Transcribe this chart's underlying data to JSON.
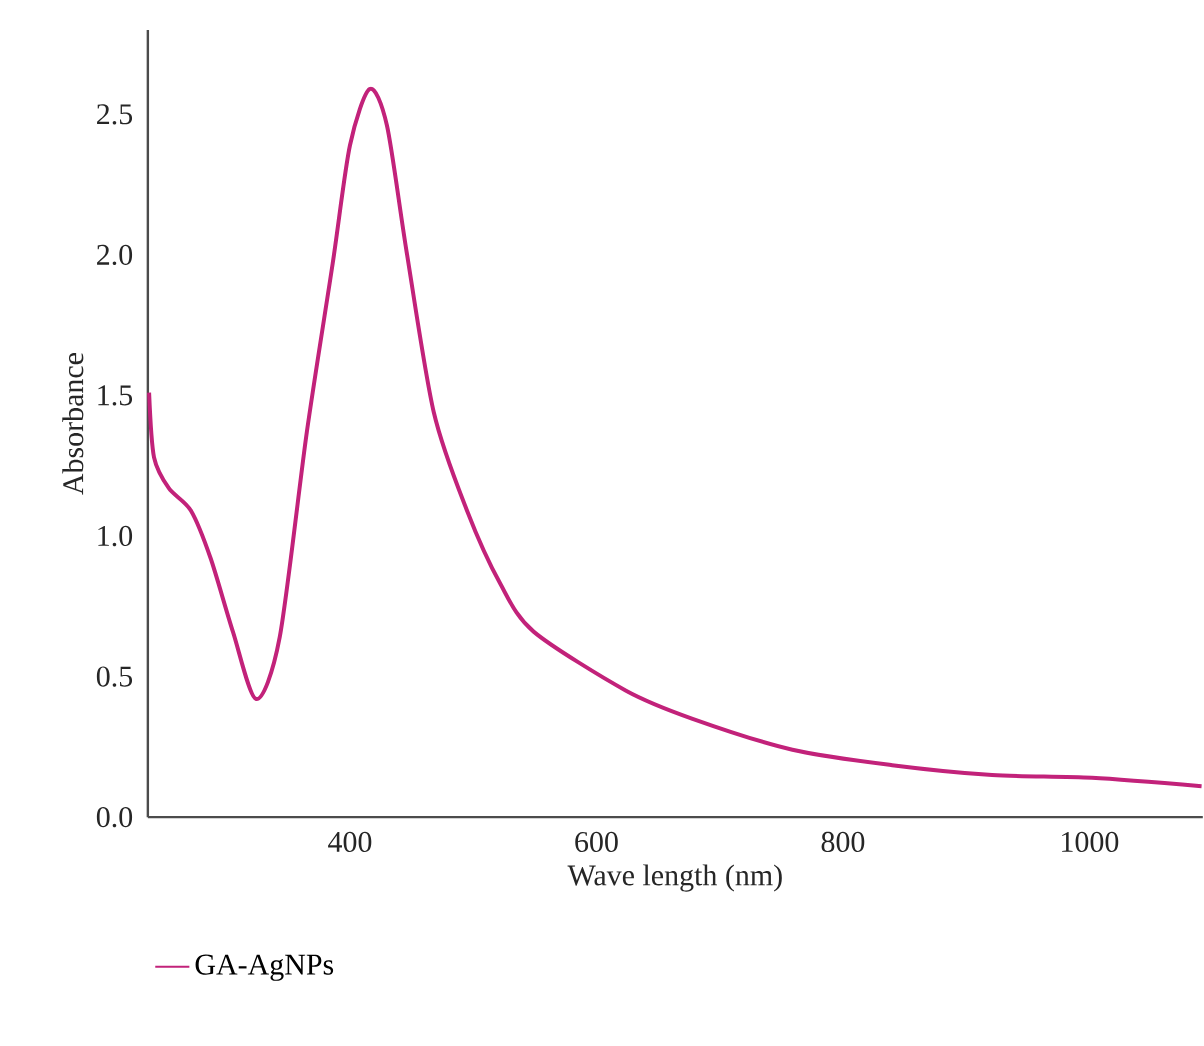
{
  "chart_data": {
    "type": "line",
    "xlabel": "Wave length (nm)",
    "ylabel": "Absorbance",
    "xlim": [
      236,
      1092
    ],
    "xticks": [
      400,
      600,
      800,
      1000
    ],
    "ylim": [
      0,
      2.8
    ],
    "yticks": [
      {
        "value": 0,
        "label": "0.0"
      },
      {
        "value": 0.5,
        "label": "0.5"
      },
      {
        "value": 1,
        "label": "1.0"
      },
      {
        "value": 1.5,
        "label": "1.5"
      },
      {
        "value": 2,
        "label": "2.0"
      },
      {
        "value": 2.5,
        "label": "2.5"
      }
    ],
    "grid": false,
    "legend": "bottom left",
    "marker": "none",
    "line_style": "solid",
    "series": [
      {
        "name": "GA-AgNPs",
        "color": "#c2227a",
        "x": [
          237,
          241,
          253,
          271,
          287,
          305,
          324,
          343,
          365,
          386,
          400,
          416,
          430,
          446,
          468,
          495,
          522,
          549,
          624,
          678,
          759,
          840,
          921,
          1002,
          1091
        ],
        "values": [
          1.51,
          1.28,
          1.17,
          1.09,
          0.92,
          0.66,
          0.42,
          0.64,
          1.37,
          1.97,
          2.39,
          2.59,
          2.46,
          2.01,
          1.44,
          1.09,
          0.83,
          0.66,
          0.45,
          0.35,
          0.24,
          0.185,
          0.15,
          0.14,
          0.11
        ]
      }
    ]
  }
}
